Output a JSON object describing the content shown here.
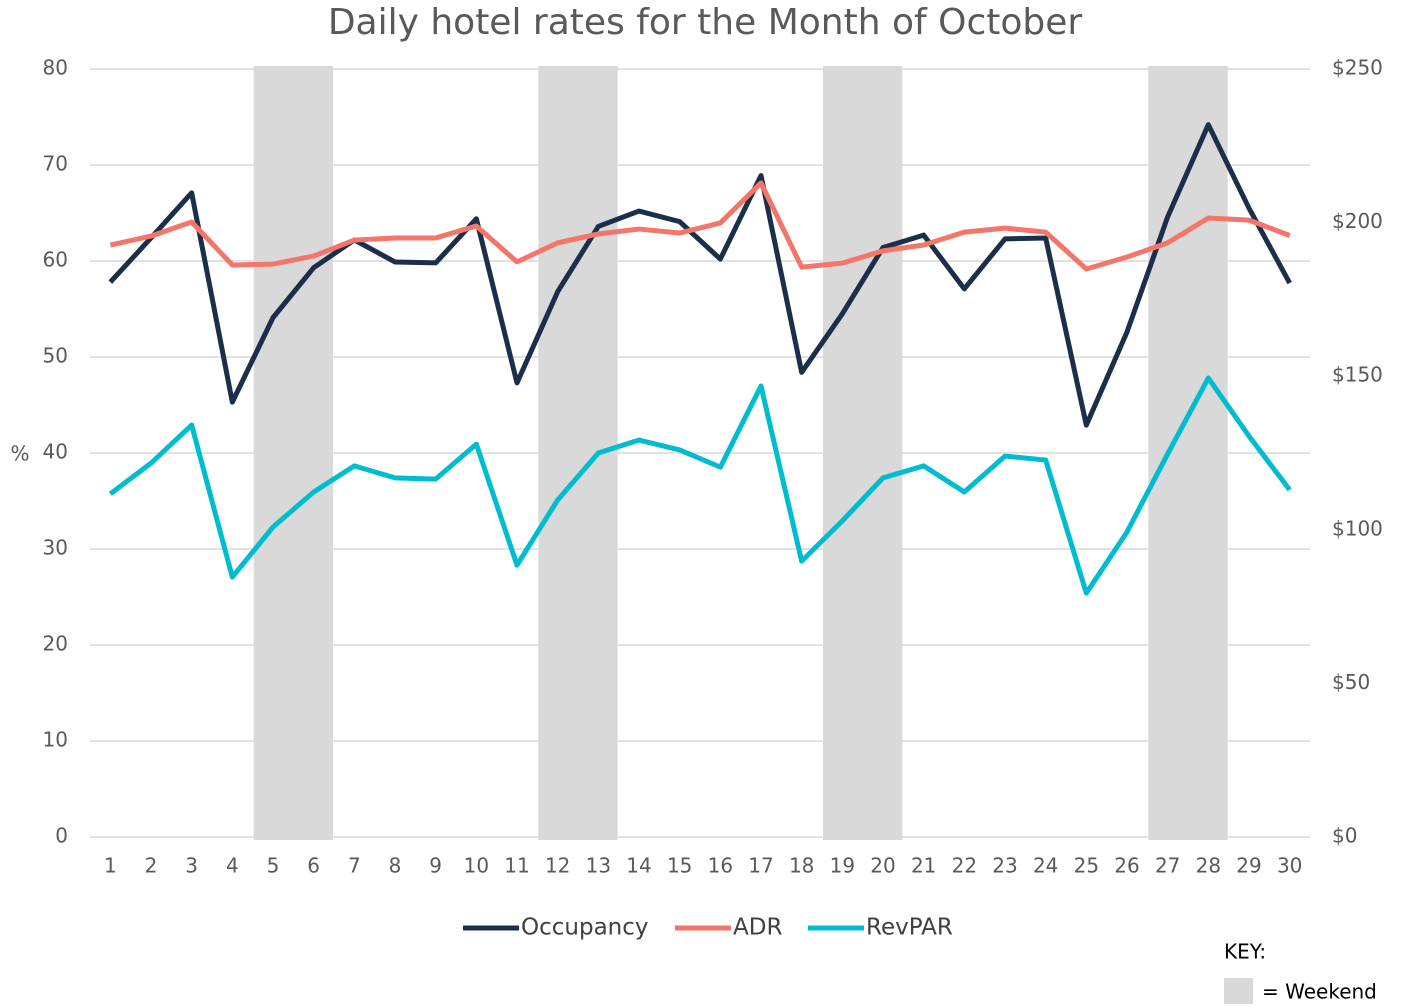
{
  "chart_data": {
    "type": "line",
    "title": "Daily hotel rates for the Month of October",
    "y_label": "%",
    "categories": [
      1,
      2,
      3,
      4,
      5,
      6,
      7,
      8,
      9,
      10,
      11,
      12,
      13,
      14,
      15,
      16,
      17,
      18,
      19,
      20,
      21,
      22,
      23,
      24,
      25,
      26,
      27,
      28,
      29,
      30
    ],
    "series": [
      {
        "name": "Occupancy",
        "color": "#1b2e4a",
        "values": [
          57.8,
          62.4,
          67.1,
          45.3,
          54.1,
          59.3,
          62.2,
          59.9,
          59.8,
          64.4,
          47.3,
          56.8,
          63.6,
          65.2,
          64.1,
          60.2,
          68.9,
          48.4,
          54.5,
          61.4,
          62.7,
          57.1,
          62.3,
          62.4,
          42.9,
          52.6,
          64.6,
          74.2,
          65.5,
          57.7
        ]
      },
      {
        "name": "ADR",
        "color": "#f4756a",
        "axis": "y2",
        "values": [
          192.7,
          195.6,
          200.2,
          186.2,
          186.5,
          189.1,
          194.3,
          195.0,
          195.0,
          198.9,
          187.2,
          193.4,
          196.3,
          197.9,
          196.6,
          199.9,
          212.9,
          185.5,
          186.8,
          190.8,
          192.7,
          196.9,
          198.2,
          196.9,
          184.9,
          188.8,
          193.4,
          201.5,
          200.8,
          195.8
        ]
      },
      {
        "name": "RevPAR",
        "color": "#00bcd0",
        "axis": "y2",
        "values": [
          111.7,
          121.7,
          134.1,
          84.6,
          100.9,
          112.3,
          120.8,
          116.9,
          116.5,
          127.9,
          88.5,
          109.7,
          125.0,
          129.2,
          126.0,
          120.4,
          146.8,
          89.8,
          102.9,
          116.9,
          120.8,
          112.3,
          124.0,
          122.7,
          79.4,
          99.3,
          124.7,
          149.4,
          130.5,
          113.0
        ]
      }
    ],
    "ylim": [
      0,
      80
    ],
    "yticks": [
      0,
      10,
      20,
      30,
      40,
      50,
      60,
      70,
      80
    ],
    "y2lim": [
      0,
      250
    ],
    "y2ticks": [
      {
        "value": 0,
        "label": "$0"
      },
      {
        "value": 50,
        "label": "$50"
      },
      {
        "value": 100,
        "label": "$100"
      },
      {
        "value": 150,
        "label": "$150"
      },
      {
        "value": 200,
        "label": "$200"
      },
      {
        "value": 250,
        "label": "$250"
      }
    ],
    "grid": true,
    "weekends": [
      [
        5,
        6
      ],
      [
        12,
        13
      ],
      [
        19,
        20
      ],
      [
        27,
        28
      ]
    ],
    "weekend_color": "#d9d9d9",
    "key_title": "KEY:",
    "key_label": "= Weekend",
    "legend": "bottom"
  }
}
